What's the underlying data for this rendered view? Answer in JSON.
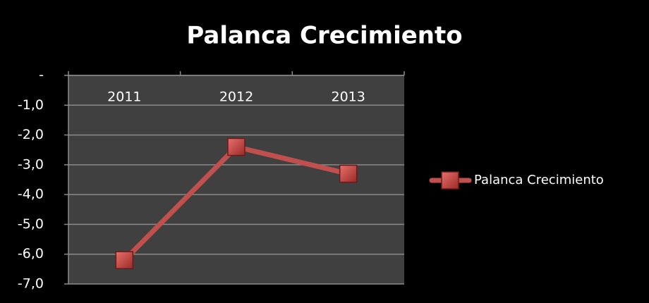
{
  "chart_data": {
    "type": "line",
    "title": "Palanca Crecimiento",
    "categories": [
      "2011",
      "2012",
      "2013"
    ],
    "series": [
      {
        "name": "Palanca Crecimiento",
        "color": "#c0504d",
        "values": [
          -6.2,
          -2.4,
          -3.3
        ]
      }
    ],
    "ylim": [
      -7,
      0
    ],
    "yticks": [
      {
        "value": 0,
        "label": "-"
      },
      {
        "value": -1,
        "label": "-1,0"
      },
      {
        "value": -2,
        "label": "-2,0"
      },
      {
        "value": -3,
        "label": "-3,0"
      },
      {
        "value": -4,
        "label": "-4,0"
      },
      {
        "value": -5,
        "label": "-5,0"
      },
      {
        "value": -6,
        "label": "-6,0"
      },
      {
        "value": -7,
        "label": "-7,0"
      }
    ],
    "grid": true,
    "legend": "right"
  }
}
